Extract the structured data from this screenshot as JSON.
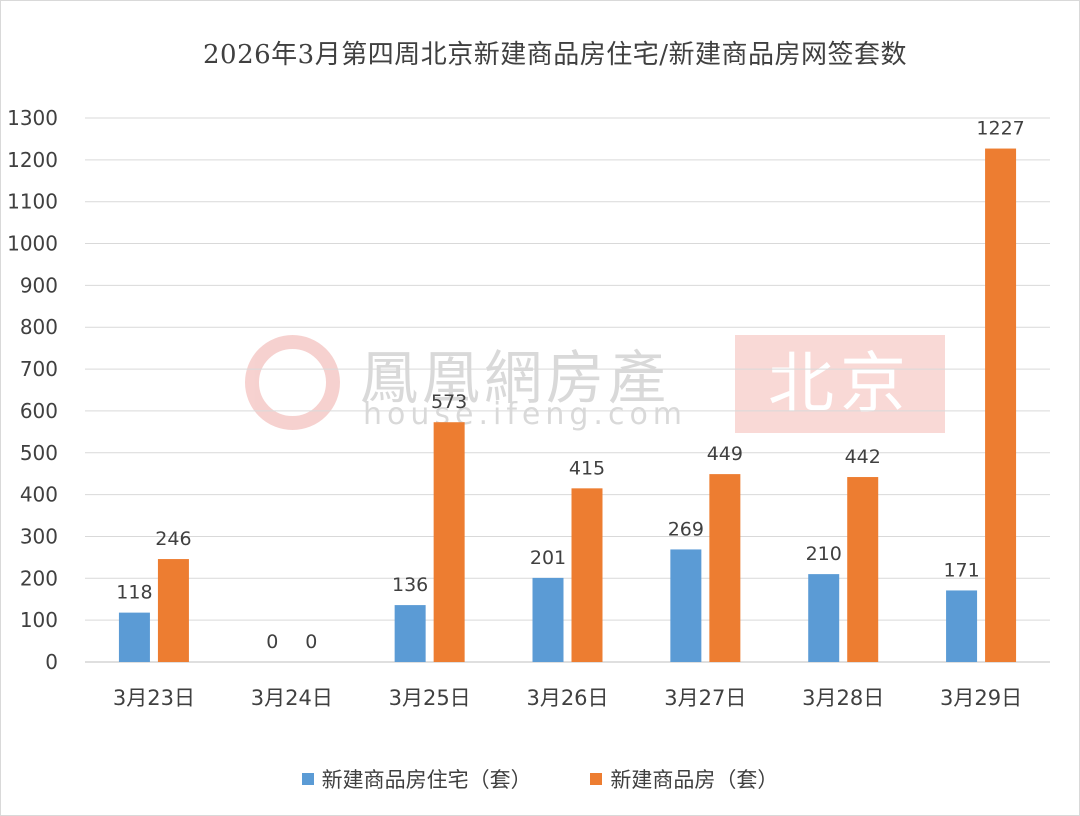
{
  "chart_data": {
    "type": "bar",
    "title": "2026年3月第四周北京新建商品房住宅/新建商品房网签套数",
    "categories": [
      "3月23日",
      "3月24日",
      "3月25日",
      "3月26日",
      "3月27日",
      "3月28日",
      "3月29日"
    ],
    "series": [
      {
        "name": "新建商品房住宅（套）",
        "color": "#5b9bd5",
        "values": [
          118,
          0,
          136,
          201,
          269,
          210,
          171
        ]
      },
      {
        "name": "新建商品房（套）",
        "color": "#ed7d31",
        "values": [
          246,
          0,
          573,
          415,
          449,
          442,
          1227
        ]
      }
    ],
    "ylim": [
      0,
      1300
    ],
    "yticks": [
      0,
      100,
      200,
      300,
      400,
      500,
      600,
      700,
      800,
      900,
      1000,
      1100,
      1200,
      1300
    ],
    "xlabel": "",
    "ylabel": "",
    "grid": true,
    "legend_position": "bottom"
  },
  "watermark": {
    "brand": "鳳凰網房產",
    "url": "house.ifeng.com",
    "city": "北京"
  }
}
